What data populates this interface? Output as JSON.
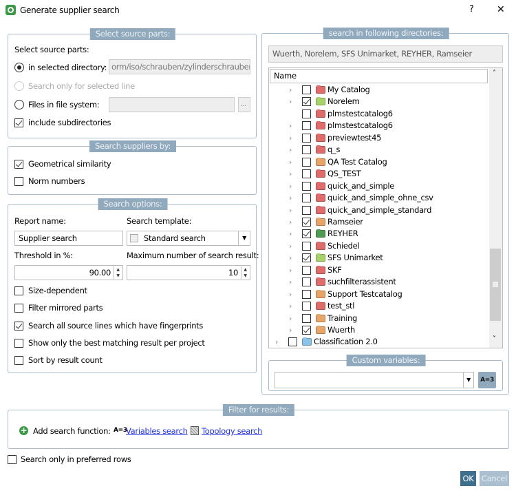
{
  "window": {
    "title": "Generate supplier search",
    "help": "?",
    "close": "✕"
  },
  "source_parts": {
    "title": "Select source parts:",
    "heading": "Select source parts:",
    "in_selected_directory": "in selected directory:",
    "directory_value": "orm/iso/schrauben/zylinderschrauben",
    "selected_line": "Search only for selected line",
    "files": "Files in file system:",
    "files_value": "",
    "browse": "...",
    "include_subdirs": "include subdirectories",
    "include_subdirs_checked": true,
    "selected": "in_selected_directory"
  },
  "suppliers_by": {
    "title": "Search suppliers by:",
    "geometrical": "Geometrical similarity",
    "geometrical_checked": true,
    "norm": "Norm numbers",
    "norm_checked": false
  },
  "options": {
    "title": "Search options:",
    "report_label": "Report name:",
    "report_value": "Supplier search",
    "template_label": "Search template:",
    "template_value": "Standard search",
    "threshold_label": "Threshold in %:",
    "threshold_value": "90.00",
    "max_label": "Maximum number of search result:",
    "max_value": "10",
    "checks": [
      {
        "label": "Size-dependent",
        "checked": false
      },
      {
        "label": "Filter mirrored parts",
        "checked": false
      },
      {
        "label": "Search all source lines which have fingerprints",
        "checked": true
      },
      {
        "label": "Show only the best matching result per project",
        "checked": false
      },
      {
        "label": "Sort by result count",
        "checked": false
      }
    ]
  },
  "directories": {
    "title": "search in following directories:",
    "summary": "Wuerth, Norelem, SFS Unimarket, REYHER, Ramseier",
    "column": "Name",
    "items": [
      {
        "label": "My Catalog",
        "checked": false,
        "color": "#e06b6b",
        "expander": true
      },
      {
        "label": "Norelem",
        "checked": true,
        "color": "#a9d36a",
        "expander": true
      },
      {
        "label": "plmstestcatalog6",
        "checked": false,
        "color": "#e06b6b",
        "expander": false
      },
      {
        "label": "plmstestcatalog6",
        "checked": false,
        "color": "#e06b6b",
        "expander": true
      },
      {
        "label": "previewtest45",
        "checked": false,
        "color": "#e06b6b",
        "expander": true
      },
      {
        "label": "q_s",
        "checked": false,
        "color": "#e06b6b",
        "expander": true
      },
      {
        "label": "QA Test Catalog",
        "checked": false,
        "color": "#e8a56a",
        "expander": true
      },
      {
        "label": "QS_TEST",
        "checked": false,
        "color": "#e06b6b",
        "expander": true
      },
      {
        "label": "quick_and_simple",
        "checked": false,
        "color": "#e06b6b",
        "expander": true
      },
      {
        "label": "quick_and_simple_ohne_csv",
        "checked": false,
        "color": "#e06b6b",
        "expander": true
      },
      {
        "label": "quick_and_simple_standard",
        "checked": false,
        "color": "#e06b6b",
        "expander": true
      },
      {
        "label": "Ramseier",
        "checked": true,
        "color": "#e8a56a",
        "expander": true
      },
      {
        "label": "REYHER",
        "checked": true,
        "color": "#4f9a55",
        "expander": true
      },
      {
        "label": "Schiedel",
        "checked": false,
        "color": "#e06b6b",
        "expander": true
      },
      {
        "label": "SFS Unimarket",
        "checked": true,
        "color": "#a9d36a",
        "expander": true
      },
      {
        "label": "SKF",
        "checked": false,
        "color": "#e06b6b",
        "expander": true
      },
      {
        "label": "suchfilterassistent",
        "checked": false,
        "color": "#e06b6b",
        "expander": true
      },
      {
        "label": "Support Testcatalog",
        "checked": false,
        "color": "#e8a56a",
        "expander": true
      },
      {
        "label": "test_stl",
        "checked": false,
        "color": "#e06b6b",
        "expander": true
      },
      {
        "label": "Training",
        "checked": false,
        "color": "#e8a56a",
        "expander": true
      },
      {
        "label": "Wuerth",
        "checked": true,
        "color": "#e8a56a",
        "expander": true
      }
    ],
    "root": {
      "label": "Classification 2.0",
      "checked": false,
      "color": "#8cc3e8"
    }
  },
  "custom_vars": {
    "title": "Custom variables:",
    "value": "",
    "button": "A=3"
  },
  "filter": {
    "title": "Filter for results:",
    "add_label": "Add search function:",
    "var_icon": "A=3",
    "variables_link": "Variables search",
    "topology_link": "Topology search"
  },
  "preferred": {
    "label": "Search only in preferred rows",
    "checked": false
  },
  "buttons": {
    "ok": "OK",
    "cancel": "Cancel"
  }
}
